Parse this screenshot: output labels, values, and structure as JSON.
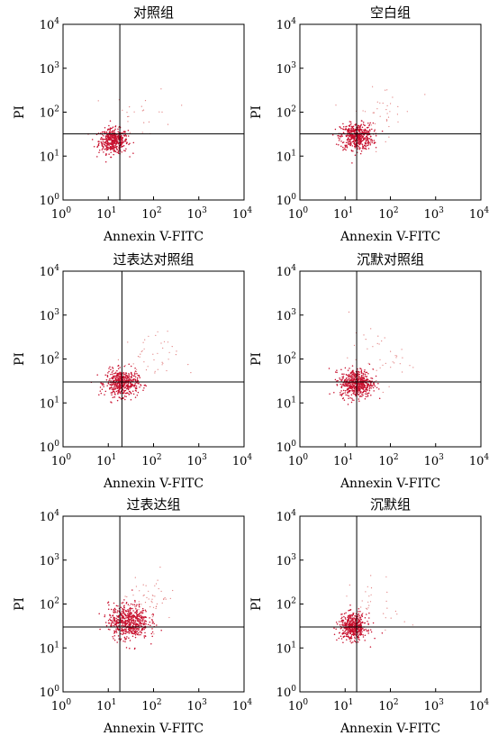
{
  "figure": {
    "colors": {
      "dots": "#c8102e",
      "dots_faint": "#e07a7a",
      "axes": "#000000"
    }
  },
  "chart_data": [
    {
      "type": "scatter",
      "title": "对照组",
      "xlabel": "Annexin V-FITC",
      "ylabel": "PI",
      "x_scale": "log",
      "y_scale": "log",
      "xlim": [
        1,
        10000
      ],
      "ylim": [
        1,
        10000
      ],
      "x_ticks": [
        {
          "base": "10",
          "exp": "0"
        },
        {
          "base": "10",
          "exp": "1"
        },
        {
          "base": "10",
          "exp": "2"
        },
        {
          "base": "10",
          "exp": "3"
        },
        {
          "base": "10",
          "exp": "4"
        }
      ],
      "y_ticks": [
        {
          "base": "10",
          "exp": "0"
        },
        {
          "base": "10",
          "exp": "1"
        },
        {
          "base": "10",
          "exp": "2"
        },
        {
          "base": "10",
          "exp": "3"
        },
        {
          "base": "10",
          "exp": "4"
        }
      ],
      "gate": {
        "x": 18,
        "y": 32
      },
      "population": {
        "center": [
          13,
          22
        ],
        "spread": [
          0.16,
          0.14
        ],
        "n": 450
      },
      "tail": {
        "center": [
          60,
          90
        ],
        "spread": [
          0.35,
          0.3
        ],
        "n": 25
      }
    },
    {
      "type": "scatter",
      "title": "空白组",
      "xlabel": "Annexin V-FITC",
      "ylabel": "PI",
      "x_scale": "log",
      "y_scale": "log",
      "xlim": [
        1,
        10000
      ],
      "ylim": [
        1,
        10000
      ],
      "x_ticks": [
        {
          "base": "10",
          "exp": "0"
        },
        {
          "base": "10",
          "exp": "1"
        },
        {
          "base": "10",
          "exp": "2"
        },
        {
          "base": "10",
          "exp": "3"
        },
        {
          "base": "10",
          "exp": "4"
        }
      ],
      "y_ticks": [
        {
          "base": "10",
          "exp": "0"
        },
        {
          "base": "10",
          "exp": "1"
        },
        {
          "base": "10",
          "exp": "2"
        },
        {
          "base": "10",
          "exp": "3"
        },
        {
          "base": "10",
          "exp": "4"
        }
      ],
      "gate": {
        "x": 18,
        "y": 32
      },
      "population": {
        "center": [
          18,
          28
        ],
        "spread": [
          0.18,
          0.15
        ],
        "n": 500
      },
      "tail": {
        "center": [
          70,
          110
        ],
        "spread": [
          0.35,
          0.3
        ],
        "n": 35
      }
    },
    {
      "type": "scatter",
      "title": "过表达对照组",
      "xlabel": "Annexin V-FITC",
      "ylabel": "PI",
      "x_scale": "log",
      "y_scale": "log",
      "xlim": [
        1,
        10000
      ],
      "ylim": [
        1,
        10000
      ],
      "x_ticks": [
        {
          "base": "10",
          "exp": "0"
        },
        {
          "base": "10",
          "exp": "1"
        },
        {
          "base": "10",
          "exp": "2"
        },
        {
          "base": "10",
          "exp": "3"
        },
        {
          "base": "10",
          "exp": "4"
        }
      ],
      "y_ticks": [
        {
          "base": "10",
          "exp": "0"
        },
        {
          "base": "10",
          "exp": "1"
        },
        {
          "base": "10",
          "exp": "2"
        },
        {
          "base": "10",
          "exp": "3"
        },
        {
          "base": "10",
          "exp": "4"
        }
      ],
      "gate": {
        "x": 20,
        "y": 30
      },
      "population": {
        "center": [
          20,
          28
        ],
        "spread": [
          0.18,
          0.15
        ],
        "n": 500
      },
      "tail": {
        "center": [
          70,
          100
        ],
        "spread": [
          0.35,
          0.3
        ],
        "n": 45
      }
    },
    {
      "type": "scatter",
      "title": "沉默对照组",
      "xlabel": "Annexin V-FITC",
      "ylabel": "PI",
      "x_scale": "log",
      "y_scale": "log",
      "xlim": [
        1,
        10000
      ],
      "ylim": [
        1,
        10000
      ],
      "x_ticks": [
        {
          "base": "10",
          "exp": "0"
        },
        {
          "base": "10",
          "exp": "1"
        },
        {
          "base": "10",
          "exp": "2"
        },
        {
          "base": "10",
          "exp": "3"
        },
        {
          "base": "10",
          "exp": "4"
        }
      ],
      "y_ticks": [
        {
          "base": "10",
          "exp": "0"
        },
        {
          "base": "10",
          "exp": "1"
        },
        {
          "base": "10",
          "exp": "2"
        },
        {
          "base": "10",
          "exp": "3"
        },
        {
          "base": "10",
          "exp": "4"
        }
      ],
      "gate": {
        "x": 18,
        "y": 30
      },
      "population": {
        "center": [
          18,
          28
        ],
        "spread": [
          0.18,
          0.16
        ],
        "n": 550
      },
      "tail": {
        "center": [
          60,
          100
        ],
        "spread": [
          0.35,
          0.3
        ],
        "n": 40
      }
    },
    {
      "type": "scatter",
      "title": "过表达组",
      "xlabel": "Annexin V-FITC",
      "ylabel": "PI",
      "x_scale": "log",
      "y_scale": "log",
      "xlim": [
        1,
        10000
      ],
      "ylim": [
        1,
        10000
      ],
      "x_ticks": [
        {
          "base": "10",
          "exp": "0"
        },
        {
          "base": "10",
          "exp": "1"
        },
        {
          "base": "10",
          "exp": "2"
        },
        {
          "base": "10",
          "exp": "3"
        },
        {
          "base": "10",
          "exp": "4"
        }
      ],
      "y_ticks": [
        {
          "base": "10",
          "exp": "0"
        },
        {
          "base": "10",
          "exp": "1"
        },
        {
          "base": "10",
          "exp": "2"
        },
        {
          "base": "10",
          "exp": "3"
        },
        {
          "base": "10",
          "exp": "4"
        }
      ],
      "gate": {
        "x": 18,
        "y": 30
      },
      "population": {
        "center": [
          28,
          40
        ],
        "spread": [
          0.22,
          0.2
        ],
        "n": 600
      },
      "tail": {
        "center": [
          80,
          120
        ],
        "spread": [
          0.3,
          0.28
        ],
        "n": 60
      }
    },
    {
      "type": "scatter",
      "title": "沉默组",
      "xlabel": "Annexin V-FITC",
      "ylabel": "PI",
      "x_scale": "log",
      "y_scale": "log",
      "xlim": [
        1,
        10000
      ],
      "ylim": [
        1,
        10000
      ],
      "x_ticks": [
        {
          "base": "10",
          "exp": "0"
        },
        {
          "base": "10",
          "exp": "1"
        },
        {
          "base": "10",
          "exp": "2"
        },
        {
          "base": "10",
          "exp": "3"
        },
        {
          "base": "10",
          "exp": "4"
        }
      ],
      "y_ticks": [
        {
          "base": "10",
          "exp": "0"
        },
        {
          "base": "10",
          "exp": "1"
        },
        {
          "base": "10",
          "exp": "2"
        },
        {
          "base": "10",
          "exp": "3"
        },
        {
          "base": "10",
          "exp": "4"
        }
      ],
      "gate": {
        "x": 18,
        "y": 30
      },
      "population": {
        "center": [
          15,
          30
        ],
        "spread": [
          0.15,
          0.15
        ],
        "n": 500
      },
      "tail": {
        "center": [
          60,
          90
        ],
        "spread": [
          0.3,
          0.3
        ],
        "n": 30
      }
    }
  ]
}
